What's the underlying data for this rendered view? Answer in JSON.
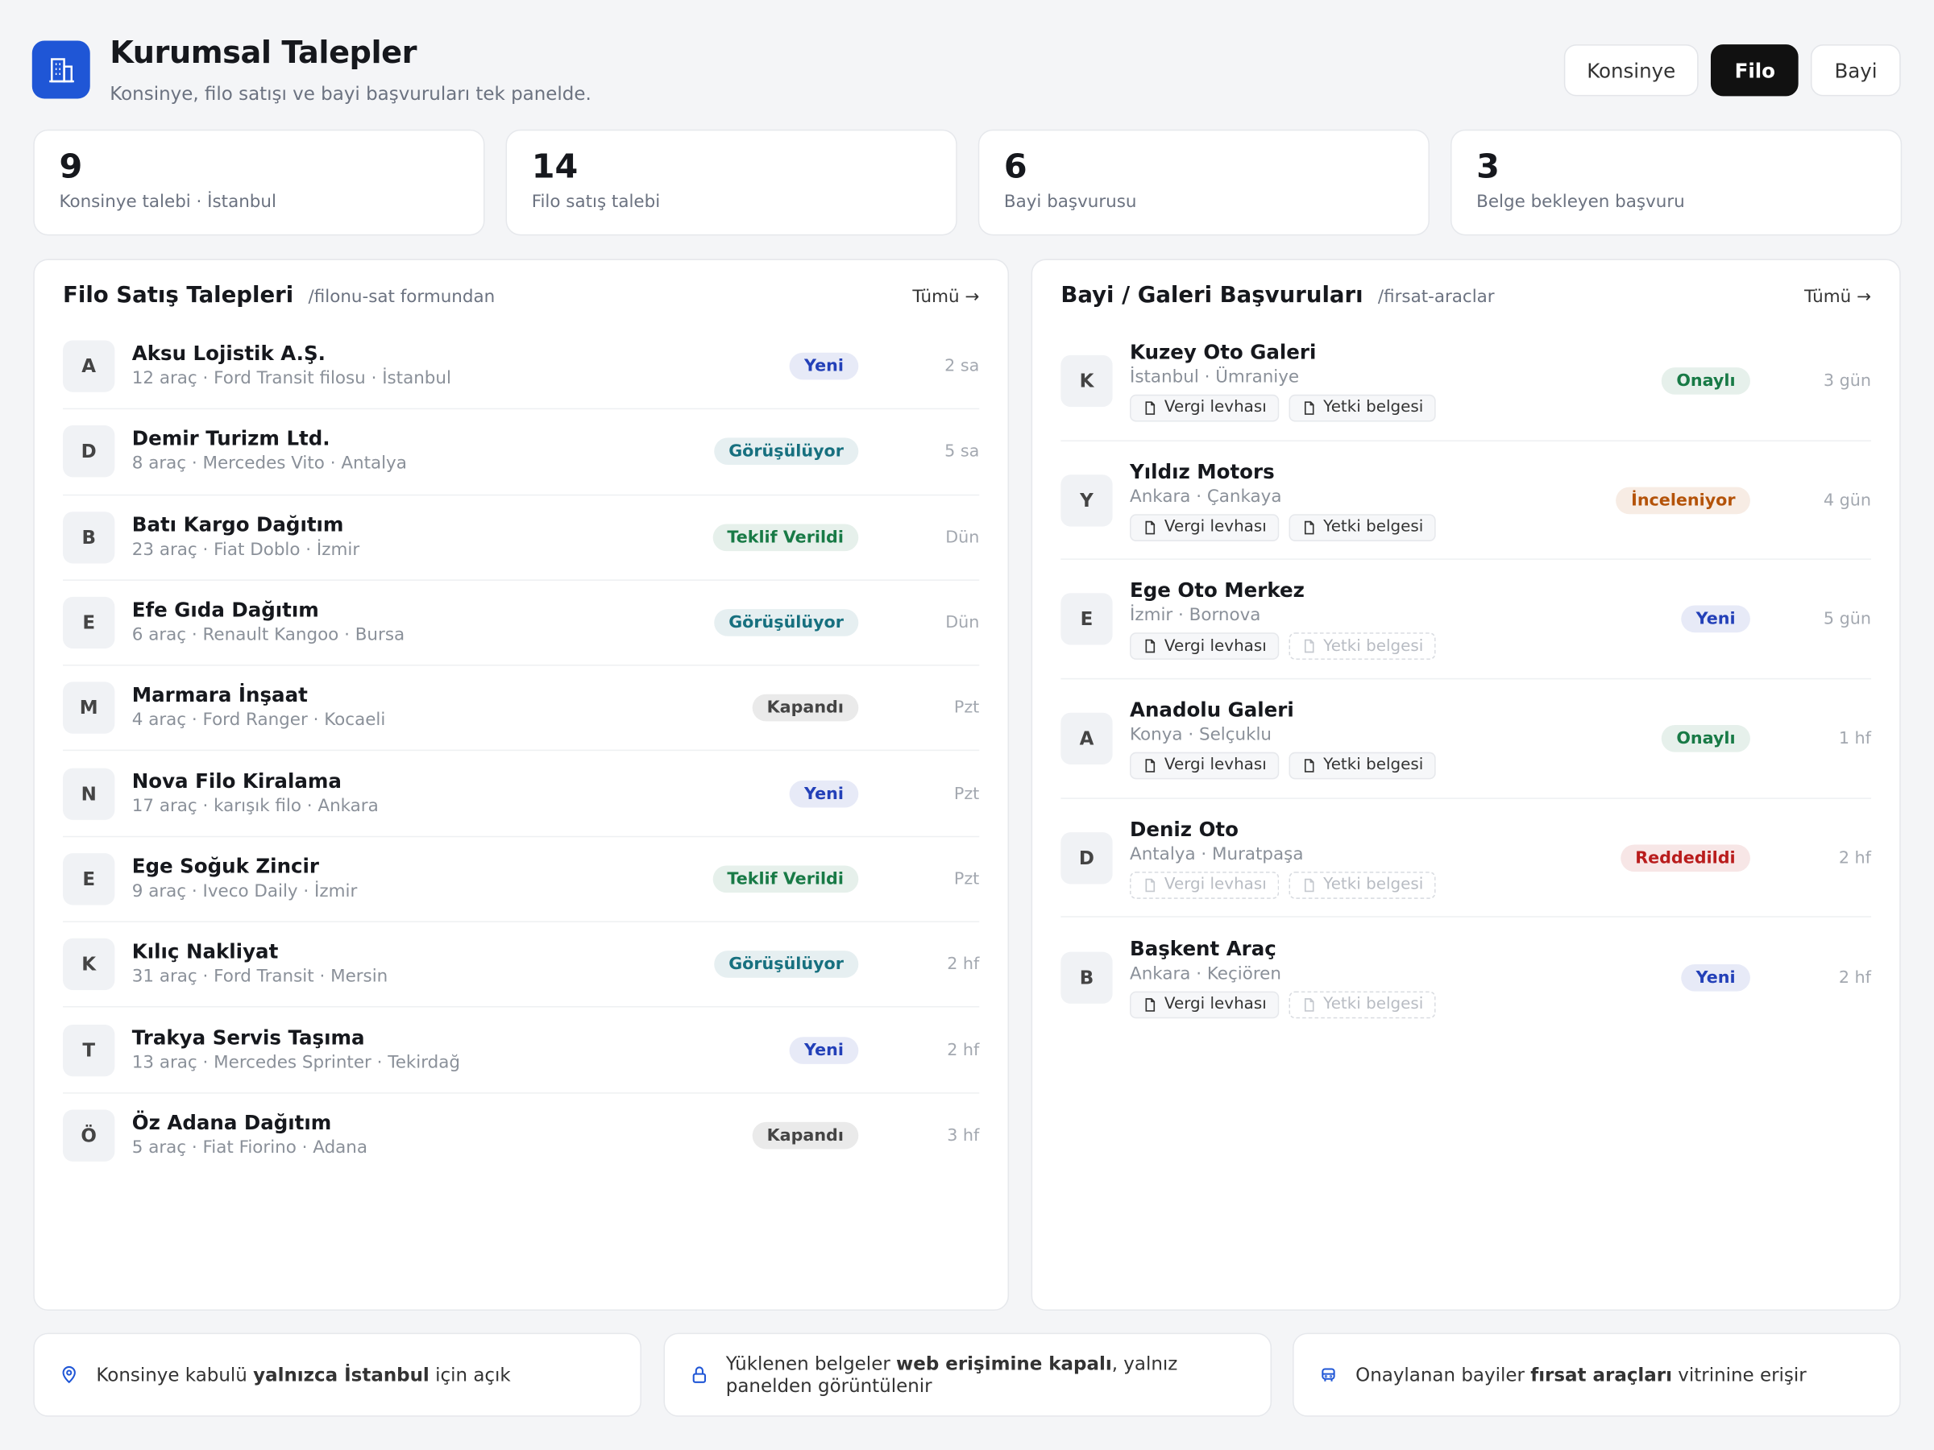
{
  "header": {
    "title": "Kurumsal Talepler",
    "subtitle": "Konsinye, filo satışı ve bayi başvuruları tek panelde."
  },
  "tabs": [
    {
      "label": "Konsinye",
      "active": false
    },
    {
      "label": "Filo",
      "active": true
    },
    {
      "label": "Bayi",
      "active": false
    }
  ],
  "stats": [
    {
      "value": 9,
      "label": "Konsinye talebi · İstanbul"
    },
    {
      "value": 14,
      "label": "Filo satış talebi"
    },
    {
      "value": 6,
      "label": "Bayi başvurusu"
    },
    {
      "value": 3,
      "label": "Belge bekleyen başvuru"
    }
  ],
  "fleet": {
    "title": "Filo Satış Talepleri",
    "source": "/filonu-sat formundan",
    "all_link": "Tümü →",
    "items": [
      {
        "initial": "A",
        "name": "Aksu Lojistik A.Ş.",
        "detail": "12 araç · Ford Transit filosu · İstanbul",
        "status": "Yeni",
        "status_color": "#2340b8",
        "time": "2 sa"
      },
      {
        "initial": "D",
        "name": "Demir Turizm Ltd.",
        "detail": "8 araç · Mercedes Vito · Antalya",
        "status": "Görüşülüyor",
        "status_color": "#17707f",
        "time": "5 sa"
      },
      {
        "initial": "B",
        "name": "Batı Kargo Dağıtım",
        "detail": "23 araç · Fiat Doblo · İzmir",
        "status": "Teklif Verildi",
        "status_color": "#187a46",
        "time": "Dün"
      },
      {
        "initial": "E",
        "name": "Efe Gıda Dağıtım",
        "detail": "6 araç · Renault Kangoo · Bursa",
        "status": "Görüşülüyor",
        "status_color": "#17707f",
        "time": "Dün"
      },
      {
        "initial": "M",
        "name": "Marmara İnşaat",
        "detail": "4 araç · Ford Ranger · Kocaeli",
        "status": "Kapandı",
        "status_color": "#444444",
        "time": "Pzt"
      },
      {
        "initial": "N",
        "name": "Nova Filo Kiralama",
        "detail": "17 araç · karışık filo · Ankara",
        "status": "Yeni",
        "status_color": "#2340b8",
        "time": "Pzt"
      },
      {
        "initial": "E",
        "name": "Ege Soğuk Zincir",
        "detail": "9 araç · Iveco Daily · İzmir",
        "status": "Teklif Verildi",
        "status_color": "#187a46",
        "time": "Pzt"
      },
      {
        "initial": "K",
        "name": "Kılıç Nakliyat",
        "detail": "31 araç · Ford Transit · Mersin",
        "status": "Görüşülüyor",
        "status_color": "#17707f",
        "time": "2 hf"
      },
      {
        "initial": "T",
        "name": "Trakya Servis Taşıma",
        "detail": "13 araç · Mercedes Sprinter · Tekirdağ",
        "status": "Yeni",
        "status_color": "#2340b8",
        "time": "2 hf"
      },
      {
        "initial": "Ö",
        "name": "Öz Adana Dağıtım",
        "detail": "5 araç · Fiat Fiorino · Adana",
        "status": "Kapandı",
        "status_color": "#444444",
        "time": "3 hf"
      }
    ]
  },
  "dealers": {
    "title": "Bayi / Galeri Başvuruları",
    "source": "/firsat-araclar",
    "all_link": "Tümü →",
    "items": [
      {
        "initial": "K",
        "name": "Kuzey Oto Galeri",
        "location": "İstanbul · Ümraniye",
        "docs": [
          {
            "label": "Vergi levhası",
            "ok": true
          },
          {
            "label": "Yetki belgesi",
            "ok": true
          }
        ],
        "status": "Onaylı",
        "status_color": "#187a46",
        "time": "3 gün"
      },
      {
        "initial": "Y",
        "name": "Yıldız Motors",
        "location": "Ankara · Çankaya",
        "docs": [
          {
            "label": "Vergi levhası",
            "ok": true
          },
          {
            "label": "Yetki belgesi",
            "ok": true
          }
        ],
        "status": "İnceleniyor",
        "status_color": "#b45309",
        "time": "4 gün"
      },
      {
        "initial": "E",
        "name": "Ege Oto Merkez",
        "location": "İzmir · Bornova",
        "docs": [
          {
            "label": "Vergi levhası",
            "ok": true
          },
          {
            "label": "Yetki belgesi",
            "ok": false
          }
        ],
        "status": "Yeni",
        "status_color": "#2340b8",
        "time": "5 gün"
      },
      {
        "initial": "A",
        "name": "Anadolu Galeri",
        "location": "Konya · Selçuklu",
        "docs": [
          {
            "label": "Vergi levhası",
            "ok": true
          },
          {
            "label": "Yetki belgesi",
            "ok": true
          }
        ],
        "status": "Onaylı",
        "status_color": "#187a46",
        "time": "1 hf"
      },
      {
        "initial": "D",
        "name": "Deniz Oto",
        "location": "Antalya · Muratpaşa",
        "docs": [
          {
            "label": "Vergi levhası",
            "ok": false
          },
          {
            "label": "Yetki belgesi",
            "ok": false
          }
        ],
        "status": "Reddedildi",
        "status_color": "#b91c1c",
        "time": "2 hf"
      },
      {
        "initial": "B",
        "name": "Başkent Araç",
        "location": "Ankara · Keçiören",
        "docs": [
          {
            "label": "Vergi levhası",
            "ok": true
          },
          {
            "label": "Yetki belgesi",
            "ok": false
          }
        ],
        "status": "Yeni",
        "status_color": "#2340b8",
        "time": "2 hf"
      }
    ]
  },
  "notes": [
    {
      "parts": [
        {
          "text": "Konsinye kabulü ",
          "bold": false
        },
        {
          "text": "yalnızca İstanbul",
          "bold": true
        },
        {
          "text": " için açık",
          "bold": false
        }
      ]
    },
    {
      "parts": [
        {
          "text": "Yüklenen belgeler ",
          "bold": false
        },
        {
          "text": "web erişimine kapalı",
          "bold": true
        },
        {
          "text": ", yalnız panelden görüntülenir",
          "bold": false
        }
      ]
    },
    {
      "parts": [
        {
          "text": "Onaylanan bayiler ",
          "bold": false
        },
        {
          "text": "fırsat araçları",
          "bold": true
        },
        {
          "text": " vitrinine erişir",
          "bold": false
        }
      ]
    }
  ]
}
